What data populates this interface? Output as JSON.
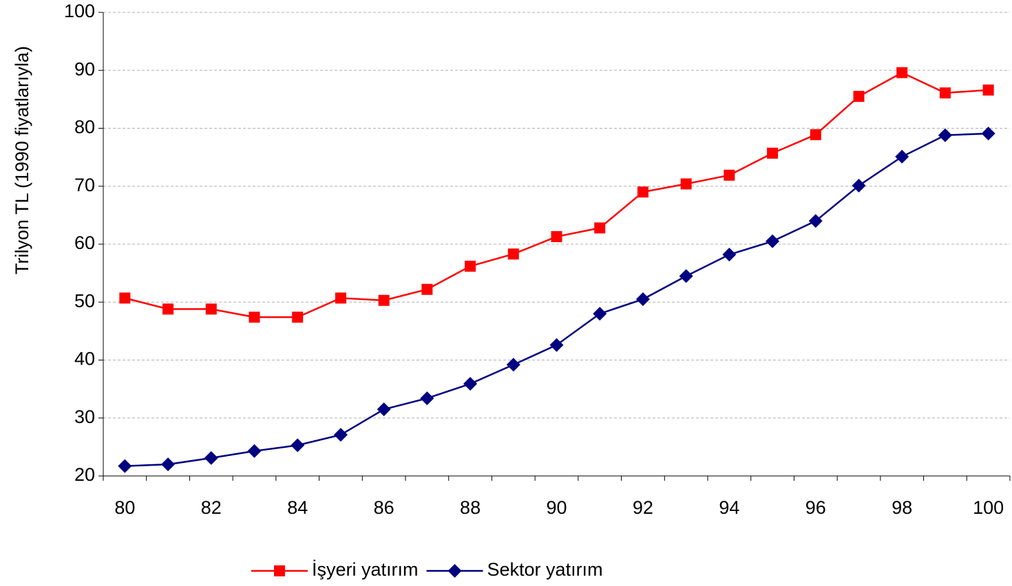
{
  "chart_data": {
    "type": "line",
    "y_label": "Trilyon TL (1990 fiyatlarıyla)",
    "categories": [
      "80",
      null,
      "82",
      null,
      "84",
      null,
      "86",
      null,
      "88",
      null,
      "90",
      null,
      "92",
      null,
      "94",
      null,
      "96",
      null,
      "98",
      null,
      "100"
    ],
    "series": [
      {
        "name": "İşyeri yatırım",
        "color": "#ff0000",
        "marker": "square",
        "values": [
          50.7,
          48.8,
          48.8,
          47.4,
          47.4,
          50.7,
          50.3,
          52.2,
          56.2,
          58.3,
          61.3,
          62.8,
          69.0,
          70.4,
          71.9,
          75.7,
          78.9,
          85.5,
          89.6,
          86.1,
          86.6
        ]
      },
      {
        "name": "Sektor yatırım",
        "color": "#000080",
        "marker": "diamond",
        "values": [
          21.7,
          22.0,
          23.1,
          24.3,
          25.3,
          27.1,
          31.5,
          33.4,
          35.9,
          39.2,
          42.6,
          48.0,
          50.5,
          54.5,
          58.2,
          60.5,
          64.0,
          70.1,
          75.1,
          78.8,
          79.1
        ]
      }
    ],
    "ylim": [
      20,
      100
    ],
    "yticks": [
      20,
      30,
      40,
      50,
      60,
      70,
      80,
      90,
      100
    ],
    "grid": true,
    "legend": "bottom"
  }
}
